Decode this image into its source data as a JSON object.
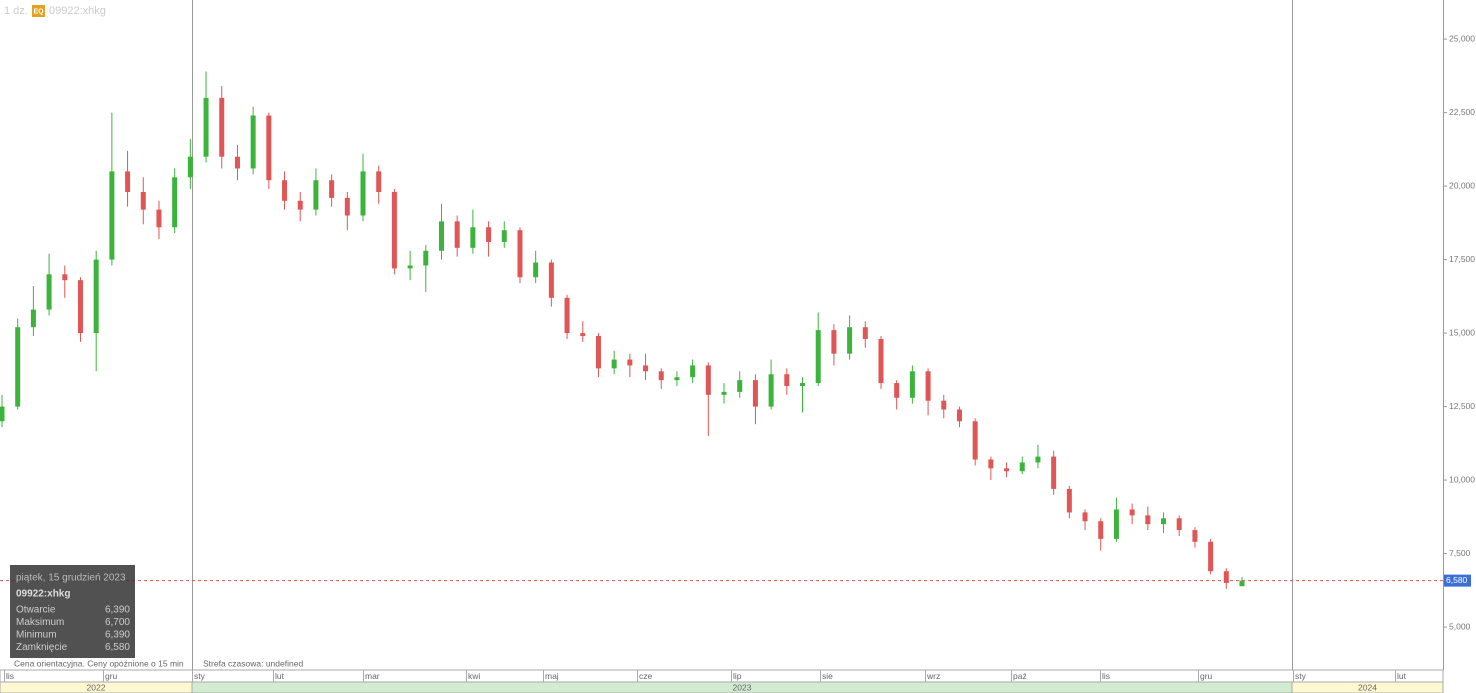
{
  "header": {
    "interval": "1 dz.",
    "badge": "EQ",
    "symbol": "09922:xhkg"
  },
  "chart_data": {
    "type": "candlestick",
    "up_color": "#3cb43c",
    "down_color": "#e05555",
    "series": {
      "open": [
        12000,
        12500,
        15200,
        15800,
        17000,
        16800,
        15000,
        17500,
        20500,
        19800,
        19200,
        18600,
        20300,
        21000,
        23000,
        21000,
        20600,
        22400,
        20200,
        19500,
        19200,
        20200,
        19600,
        19000,
        20500,
        19800,
        17200,
        17300,
        17800,
        18800,
        17900,
        18600,
        18100,
        18500,
        16900,
        17400,
        16200,
        15000,
        14900,
        13800,
        14100,
        13900,
        13700,
        13400,
        13500,
        13900,
        12900,
        13000,
        13400,
        12500,
        13600,
        13200,
        13300,
        15100,
        14300,
        15200,
        14800,
        13300,
        12800,
        13700,
        12700,
        12400,
        12000,
        10700,
        10400,
        10300,
        10600,
        10800,
        9700,
        8900,
        8600,
        8000,
        9000,
        8800,
        8500,
        8700,
        8300,
        7900,
        6900,
        6390
      ],
      "high": [
        12900,
        15500,
        16600,
        17700,
        17300,
        16900,
        17800,
        22500,
        21200,
        20300,
        19500,
        20600,
        21600,
        23900,
        23400,
        21400,
        22700,
        22500,
        20500,
        19800,
        20600,
        20400,
        19800,
        21100,
        20700,
        19900,
        17800,
        18000,
        19400,
        19000,
        19200,
        18800,
        18800,
        18600,
        17800,
        17500,
        16300,
        15400,
        15000,
        14400,
        14300,
        14300,
        13800,
        13700,
        14100,
        14000,
        13300,
        13700,
        13600,
        14100,
        13800,
        13500,
        15700,
        15300,
        15600,
        15400,
        14900,
        13400,
        13900,
        13800,
        12900,
        12500,
        12100,
        10800,
        10600,
        10800,
        11200,
        11000,
        9800,
        9000,
        8700,
        9400,
        9200,
        9100,
        8900,
        8800,
        8400,
        8000,
        7000,
        6700
      ],
      "low": [
        11800,
        12400,
        14900,
        15600,
        16200,
        14700,
        13700,
        17300,
        19300,
        18700,
        18200,
        18400,
        19900,
        20800,
        20600,
        20200,
        20400,
        19900,
        19200,
        18800,
        19000,
        19300,
        18500,
        18800,
        19400,
        17000,
        16800,
        16400,
        17500,
        17600,
        17700,
        17600,
        17900,
        16700,
        16700,
        15900,
        14800,
        14700,
        13500,
        13600,
        13500,
        13400,
        13100,
        13200,
        13300,
        11500,
        12600,
        12800,
        11900,
        12400,
        12900,
        12300,
        13200,
        13900,
        14100,
        14500,
        13100,
        12400,
        12600,
        12200,
        12100,
        11800,
        10500,
        10000,
        10100,
        10200,
        10400,
        9500,
        8700,
        8300,
        7600,
        7900,
        8500,
        8300,
        8200,
        8100,
        7700,
        6800,
        6300,
        6390
      ],
      "close": [
        12500,
        15200,
        15800,
        17000,
        16800,
        15000,
        17500,
        20500,
        19800,
        19200,
        18600,
        20300,
        21000,
        23000,
        21000,
        20600,
        22400,
        20200,
        19500,
        19200,
        20200,
        19600,
        19000,
        20500,
        19800,
        17200,
        17300,
        17800,
        18800,
        17900,
        18600,
        18100,
        18500,
        16900,
        17400,
        16200,
        15000,
        14900,
        13800,
        14100,
        13900,
        13700,
        13400,
        13500,
        13900,
        12900,
        13000,
        13400,
        12500,
        13600,
        13200,
        13300,
        15100,
        14300,
        15200,
        14800,
        13300,
        12800,
        13700,
        12700,
        12400,
        12000,
        10700,
        10400,
        10300,
        10600,
        10800,
        9700,
        8900,
        8600,
        8000,
        9000,
        8800,
        8500,
        8700,
        8300,
        7900,
        6900,
        6500,
        6580
      ]
    },
    "ylim": [
      3540,
      26330
    ],
    "yticks": [
      {
        "value": 5000,
        "label": "5,000"
      },
      {
        "value": 7500,
        "label": "7,500"
      },
      {
        "value": 10000,
        "label": "10,000"
      },
      {
        "value": 12500,
        "label": "12,500"
      },
      {
        "value": 15000,
        "label": "15,000"
      },
      {
        "value": 17500,
        "label": "17,500"
      },
      {
        "value": 20000,
        "label": "20,000"
      },
      {
        "value": 22500,
        "label": "22,500"
      },
      {
        "value": 25000,
        "label": "25,000"
      }
    ],
    "last_price": {
      "value": 6580,
      "label": "6,580"
    },
    "months": [
      "lis",
      "gru",
      "sty",
      "lut",
      "mar",
      "kwi",
      "maj",
      "cze",
      "lip",
      "sie",
      "wrz",
      "paź",
      "lis",
      "gru",
      "sty",
      "lut"
    ],
    "years": [
      "2022",
      "2023",
      "2024"
    ]
  },
  "tooltip": {
    "date": "piątek, 15 grudzień 2023",
    "symbol": "09922:xhkg",
    "rows": [
      {
        "label": "Otwarcie",
        "value": "6,390"
      },
      {
        "label": "Maksimum",
        "value": "6,700"
      },
      {
        "label": "Minimum",
        "value": "6,390"
      },
      {
        "label": "Zamknięcie",
        "value": "6,580"
      }
    ]
  },
  "footer": {
    "note": "Cena orientacyjna. Ceny opóźnione o 15 min",
    "timezone": "Strefa czasowa: undefined"
  }
}
